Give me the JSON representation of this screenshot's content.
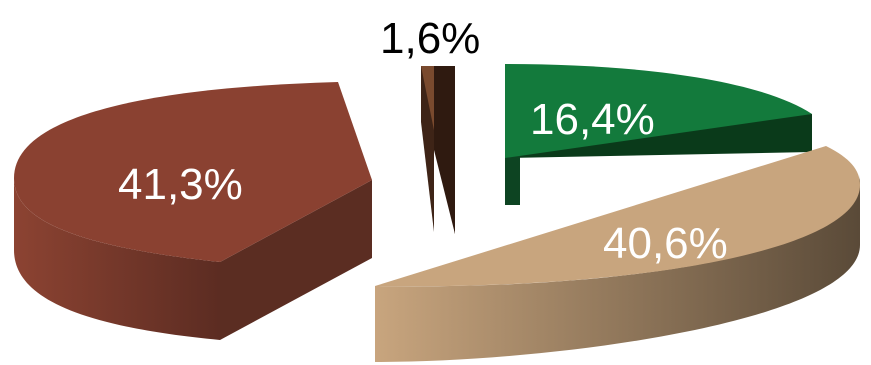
{
  "chart_data": {
    "type": "pie",
    "style": "3d-exploded",
    "title": "",
    "slices": [
      {
        "label": "16,4%",
        "value": 16.4,
        "color": "#137a3c",
        "side_color": "#0a3a1a",
        "label_color": "#ffffff"
      },
      {
        "label": "40,6%",
        "value": 40.6,
        "color": "#c8a57e",
        "side_color": "#6e5a44",
        "label_color": "#ffffff"
      },
      {
        "label": "41,3%",
        "value": 41.3,
        "color": "#8a4131",
        "side_color": "#5b2d22",
        "label_color": "#ffffff"
      },
      {
        "label": "1,6%",
        "value": 1.6,
        "color": "#7a4a2e",
        "side_color": "#3e2417",
        "label_color": "#000000"
      }
    ]
  }
}
